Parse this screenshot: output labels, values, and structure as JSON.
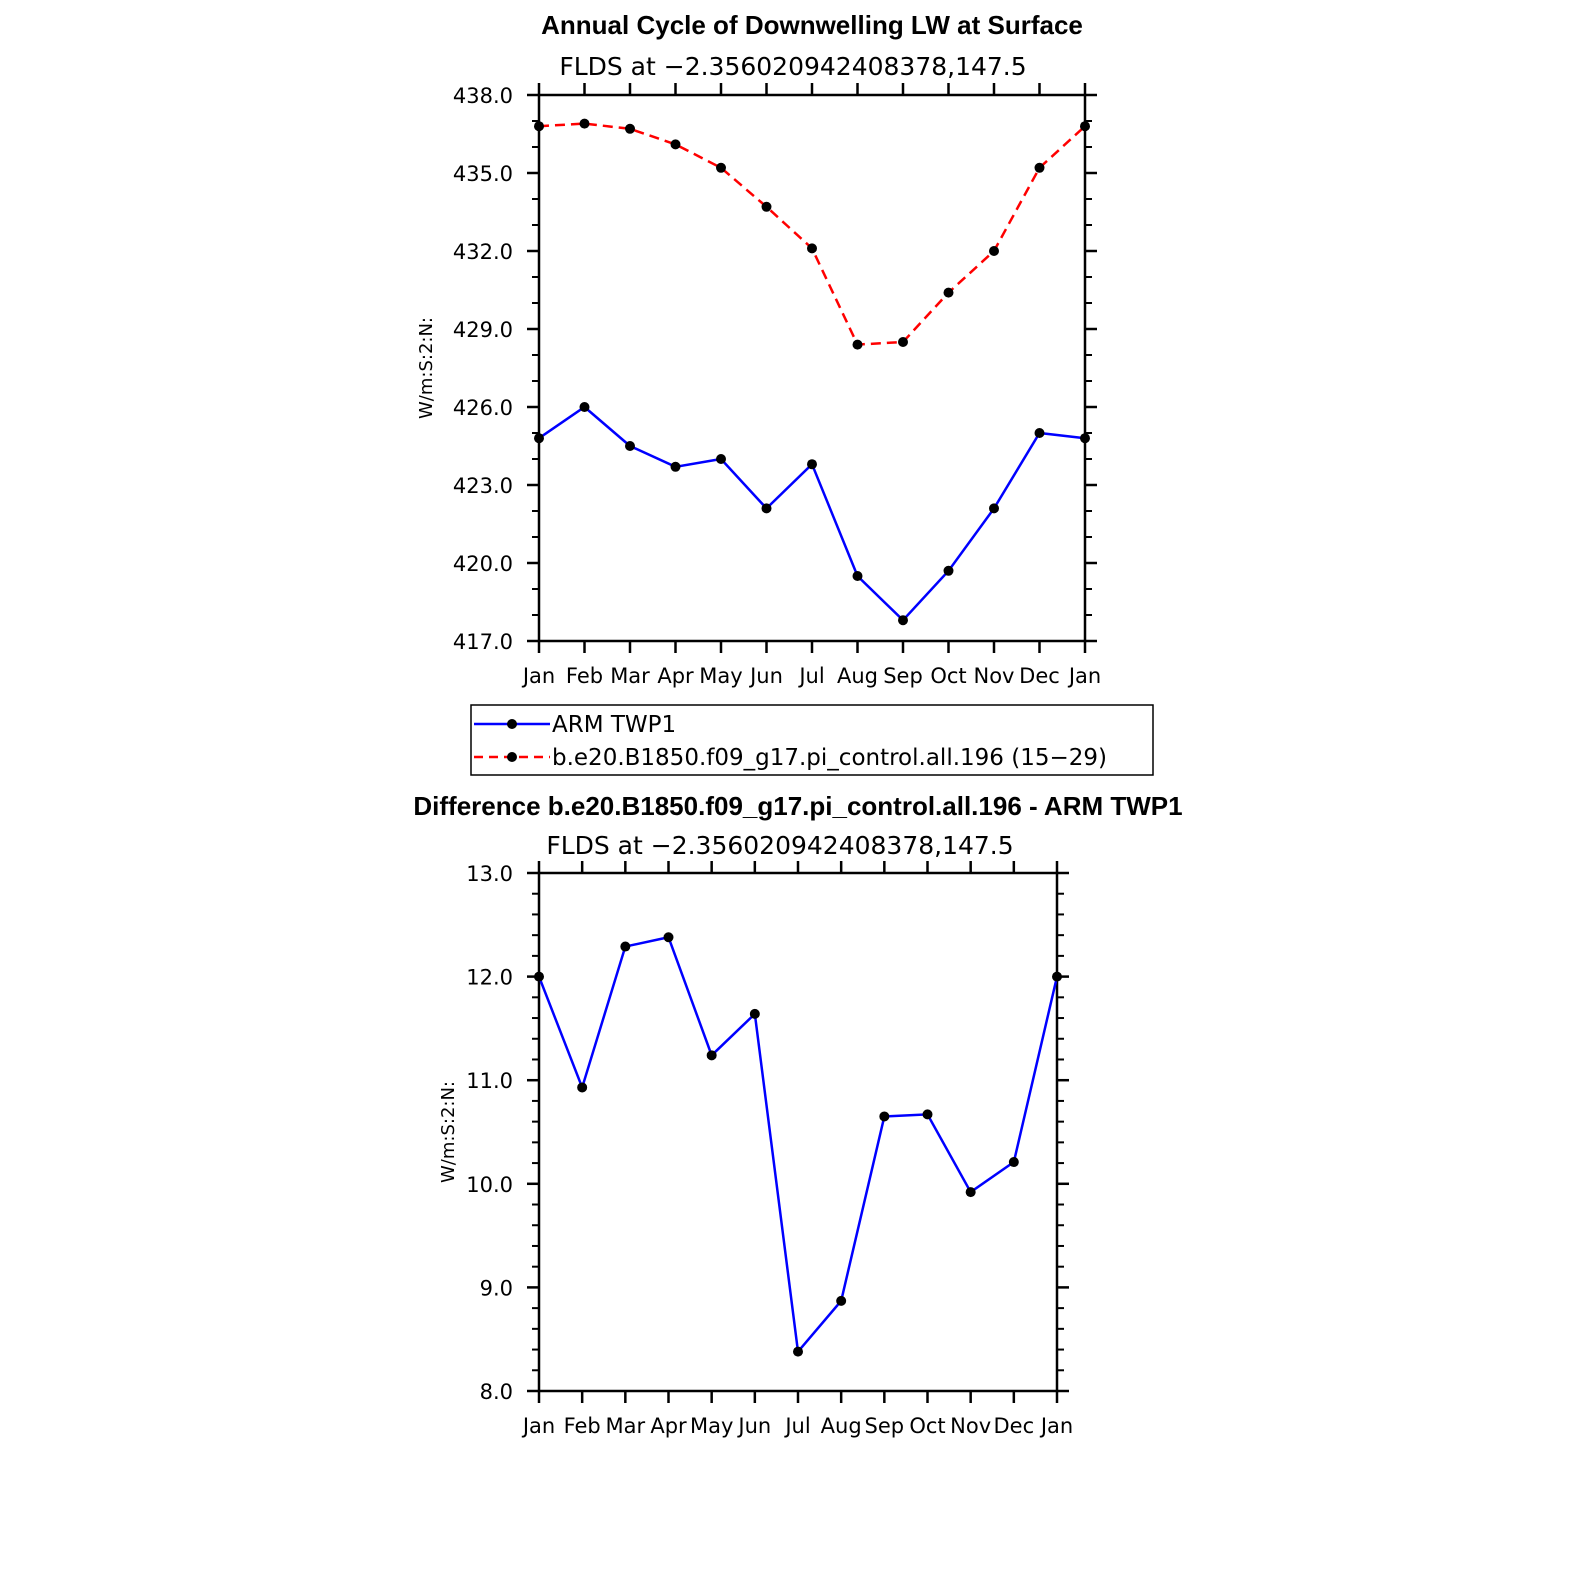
{
  "chart_data": [
    {
      "type": "line",
      "title": "Annual Cycle of Downwelling LW at Surface",
      "subtitle": "FLDS at −2.356020942408378,147.5",
      "ylabel": "W/m:S:2:N:",
      "categories": [
        "Jan",
        "Feb",
        "Mar",
        "Apr",
        "May",
        "Jun",
        "Jul",
        "Aug",
        "Sep",
        "Oct",
        "Nov",
        "Dec",
        "Jan"
      ],
      "ylim": [
        417,
        438
      ],
      "yticks": [
        417,
        420,
        423,
        426,
        429,
        432,
        435,
        438
      ],
      "ytick_labels": [
        "417.0",
        "420.0",
        "423.0",
        "426.0",
        "429.0",
        "432.0",
        "435.0",
        "438.0"
      ],
      "series": [
        {
          "name": "ARM TWP1",
          "color": "#0000ff",
          "dash": "solid",
          "values": [
            424.8,
            426.0,
            424.5,
            423.7,
            424.0,
            422.1,
            423.8,
            419.5,
            417.8,
            419.7,
            422.1,
            425.0,
            424.8
          ]
        },
        {
          "name": "b.e20.B1850.f09_g17.pi_control.all.196 (15−29)",
          "color": "#ff0000",
          "dash": "dashed",
          "values": [
            436.8,
            436.9,
            436.7,
            436.1,
            435.2,
            433.7,
            432.1,
            428.4,
            428.5,
            430.4,
            432.0,
            435.2,
            436.8
          ]
        }
      ],
      "legend": "below"
    },
    {
      "type": "line",
      "title": "Difference b.e20.B1850.f09_g17.pi_control.all.196 - ARM TWP1",
      "subtitle": "FLDS at −2.356020942408378,147.5",
      "ylabel": "W/m:S:2:N:",
      "categories": [
        "Jan",
        "Feb",
        "Mar",
        "Apr",
        "May",
        "Jun",
        "Jul",
        "Aug",
        "Sep",
        "Oct",
        "Nov",
        "Dec",
        "Jan"
      ],
      "ylim": [
        8,
        13
      ],
      "yticks": [
        8,
        9,
        10,
        11,
        12,
        13
      ],
      "ytick_labels": [
        "8.0",
        "9.0",
        "10.0",
        "11.0",
        "12.0",
        "13.0"
      ],
      "series": [
        {
          "color": "#0000ff",
          "dash": "solid",
          "values": [
            12.0,
            10.93,
            12.29,
            12.38,
            11.24,
            11.64,
            8.38,
            8.87,
            10.65,
            10.67,
            9.92,
            10.21,
            12.0
          ]
        }
      ]
    }
  ]
}
